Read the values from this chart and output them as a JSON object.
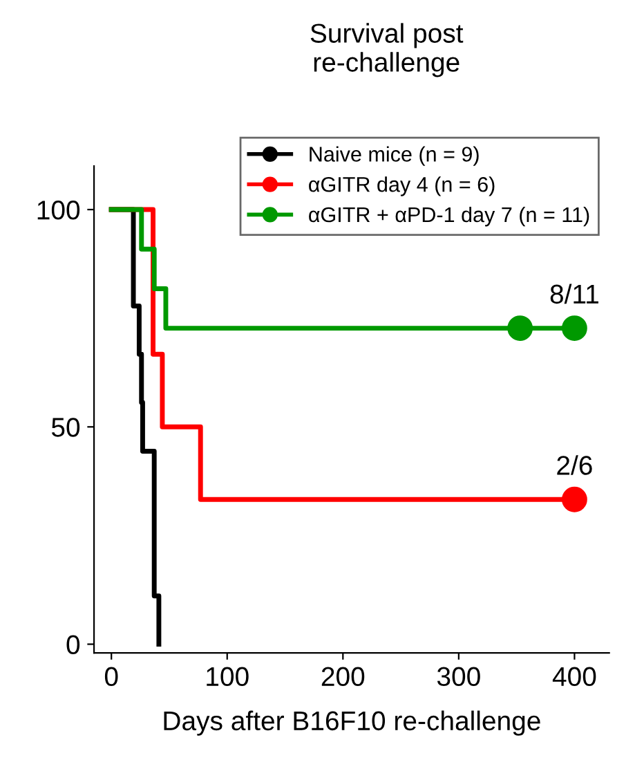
{
  "chart_data": {
    "type": "step",
    "title": "Survival post\nre-challenge",
    "xlabel": "Days after B16F10 re-challenge",
    "xlim": [
      -15,
      430
    ],
    "ylim": [
      -2,
      110
    ],
    "xticks": [
      0,
      100,
      200,
      300,
      400
    ],
    "yticks": [
      0,
      50,
      100
    ],
    "grid": false,
    "legend": "top right",
    "line_style": "solid",
    "series": [
      {
        "name": "Naive mice (n = 9)",
        "color": "#000000",
        "x": [
          0,
          19,
          24,
          26,
          27,
          37,
          41
        ],
        "values": [
          100,
          77.8,
          66.7,
          55.6,
          44.4,
          11.1,
          0
        ]
      },
      {
        "name": "αGITR day 4 (n = 6)",
        "color": "#ff0000",
        "x": [
          0,
          36,
          44,
          77,
          400
        ],
        "values": [
          100,
          66.7,
          50,
          33.3,
          33.3
        ]
      },
      {
        "name": "αGITR + αPD-1 day 7 (n = 11)",
        "color": "#009900",
        "x": [
          0,
          26,
          37,
          47,
          400
        ],
        "values": [
          100,
          90.9,
          81.8,
          72.7,
          72.7
        ]
      },
      {
        "color": "#ff0000",
        "type": "scatter",
        "x": [
          400
        ],
        "values": [
          33.3
        ]
      },
      {
        "color": "#009900",
        "type": "scatter",
        "x": [
          353,
          400
        ],
        "values": [
          72.7,
          72.7
        ]
      }
    ],
    "annotations": [
      {
        "text": "8/11",
        "x": 400,
        "y": 72.7
      },
      {
        "text": "2/6",
        "x": 400,
        "y": 33.3
      }
    ]
  }
}
